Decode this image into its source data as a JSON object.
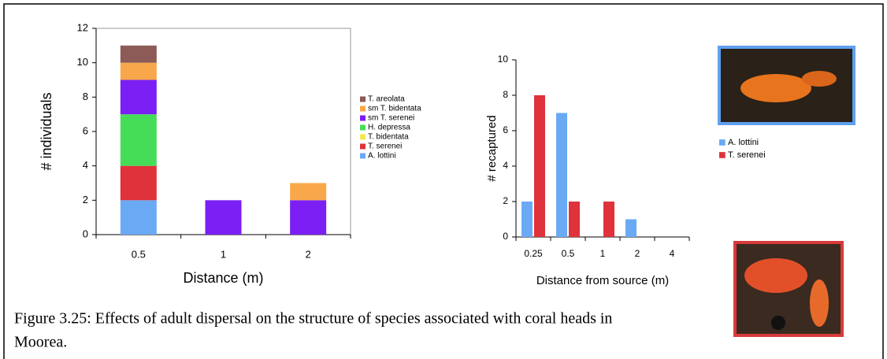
{
  "chart_data": [
    {
      "type": "bar",
      "stacked": true,
      "categories": [
        "0.5",
        "1",
        "2"
      ],
      "series": [
        {
          "name": "A. lottini",
          "color": "#6aaaf5",
          "values": [
            2,
            0,
            0
          ]
        },
        {
          "name": "T. serenei",
          "color": "#e0323a",
          "values": [
            2,
            0,
            0
          ]
        },
        {
          "name": "T. bidentata",
          "color": "#f3e850",
          "values": [
            0,
            0,
            0
          ]
        },
        {
          "name": "H. depressa",
          "color": "#45dd58",
          "values": [
            3,
            0,
            0
          ]
        },
        {
          "name": "sm T. serenei",
          "color": "#7b1ff5",
          "values": [
            2,
            2,
            2
          ]
        },
        {
          "name": "sm T. bidentata",
          "color": "#f8a84a",
          "values": [
            1,
            0,
            1
          ]
        },
        {
          "name": "T. areolata",
          "color": "#8c5b57",
          "values": [
            1,
            0,
            0
          ]
        }
      ],
      "ylim": [
        0,
        12
      ],
      "yticks": [
        0,
        2,
        4,
        6,
        8,
        10,
        12
      ],
      "xlabel": "Distance (m)",
      "ylabel": "# individuals",
      "legend": "right"
    },
    {
      "type": "bar",
      "stacked": false,
      "categories": [
        "0.25",
        "0.5",
        "1",
        "2",
        "4"
      ],
      "series": [
        {
          "name": "A. lottini",
          "color": "#6aaaf5",
          "values": [
            2,
            7,
            0,
            1,
            0
          ]
        },
        {
          "name": "T. serenei",
          "color": "#e0323a",
          "values": [
            8,
            2,
            2,
            0,
            0
          ]
        }
      ],
      "ylim": [
        0,
        10
      ],
      "yticks": [
        0,
        2,
        4,
        6,
        8,
        10
      ],
      "xlabel": "Distance from source (m)",
      "ylabel": "# recaptured",
      "legend": "right"
    }
  ],
  "caption": [
    "Figure 3.25: Effects of adult dispersal on the structure of species associated with coral heads in",
    "Moorea."
  ]
}
